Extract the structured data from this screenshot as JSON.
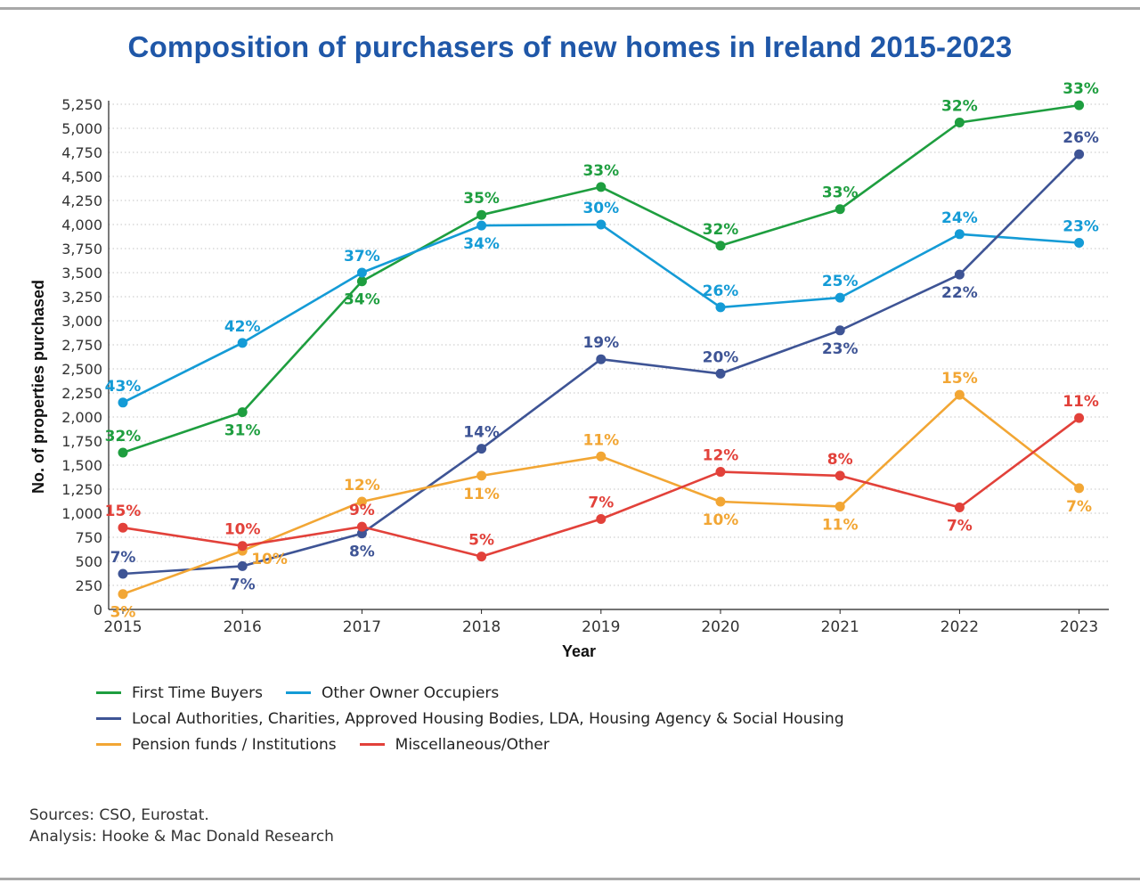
{
  "chart_data": {
    "type": "line",
    "title": "Composition of purchasers of new homes in Ireland 2015-2023",
    "xlabel": "Year",
    "ylabel": "No. of properties purchased",
    "ylim": [
      0,
      5250
    ],
    "yticks": [
      0,
      250,
      500,
      750,
      1000,
      1250,
      1500,
      1750,
      2000,
      2250,
      2500,
      2750,
      3000,
      3250,
      3500,
      3750,
      4000,
      4250,
      4500,
      4750,
      5000,
      5250
    ],
    "ytick_labels": [
      "0",
      "250",
      "500",
      "750",
      "1,000",
      "1,250",
      "1,500",
      "1,750",
      "2,000",
      "2,250",
      "2,500",
      "2,750",
      "3,000",
      "3,250",
      "3,500",
      "3,750",
      "4,000",
      "4,250",
      "4,500",
      "4,750",
      "5,000",
      "5,250"
    ],
    "categories": [
      "2015",
      "2016",
      "2017",
      "2018",
      "2019",
      "2020",
      "2021",
      "2022",
      "2023"
    ],
    "grid": "horizontal dotted",
    "legend_position": "bottom",
    "series": [
      {
        "name": "First Time Buyers",
        "color": "#1e9e3f",
        "values": [
          1630,
          2050,
          3410,
          4100,
          4390,
          3780,
          4160,
          5060,
          5240
        ],
        "labels": [
          "32%",
          "31%",
          "34%",
          "35%",
          "33%",
          "32%",
          "33%",
          "32%",
          "33%"
        ],
        "label_pos": [
          "above",
          "below",
          "below",
          "above",
          "above",
          "above",
          "above",
          "above",
          "above"
        ]
      },
      {
        "name": "Other Owner Occupiers",
        "color": "#149bd6",
        "values": [
          2150,
          2770,
          3500,
          3990,
          4000,
          3140,
          3240,
          3900,
          3810
        ],
        "labels": [
          "43%",
          "42%",
          "37%",
          "34%",
          "30%",
          "26%",
          "25%",
          "24%",
          "23%"
        ],
        "label_pos": [
          "above",
          "above",
          "above",
          "below",
          "above",
          "above",
          "above",
          "above",
          "above"
        ]
      },
      {
        "name": "Local Authorities, Charities, Approved Housing Bodies, LDA, Housing Agency & Social Housing",
        "color": "#3e5495",
        "values": [
          370,
          450,
          790,
          1670,
          2600,
          2450,
          2900,
          3480,
          4730
        ],
        "labels": [
          "7%",
          "7%",
          "8%",
          "14%",
          "19%",
          "20%",
          "23%",
          "22%",
          "26%"
        ],
        "label_pos": [
          "above",
          "below",
          "below",
          "above",
          "above",
          "above",
          "below",
          "below",
          "above"
        ]
      },
      {
        "name": "Pension funds / Institutions",
        "color": "#f2a634",
        "values": [
          160,
          610,
          1120,
          1390,
          1590,
          1120,
          1070,
          2230,
          1260
        ],
        "labels": [
          "3%",
          "10%",
          "12%",
          "11%",
          "11%",
          "10%",
          "11%",
          "15%",
          "7%"
        ],
        "label_pos": [
          "below",
          "right",
          "above",
          "below",
          "above",
          "below",
          "below",
          "above",
          "below"
        ]
      },
      {
        "name": "Miscellaneous/Other",
        "color": "#e2413a",
        "values": [
          850,
          660,
          860,
          550,
          940,
          1430,
          1390,
          1060,
          1990
        ],
        "labels": [
          "15%",
          "10%",
          "9%",
          "5%",
          "7%",
          "12%",
          "8%",
          "7%",
          "11%"
        ],
        "label_pos": [
          "above",
          "above",
          "above",
          "above",
          "above",
          "above",
          "above",
          "below",
          "above"
        ]
      }
    ]
  },
  "legend_rows": [
    [
      {
        "label": "First Time Buyers",
        "color": "#1e9e3f"
      },
      {
        "label": "Other Owner Occupiers",
        "color": "#149bd6"
      }
    ],
    [
      {
        "label": "Local Authorities, Charities, Approved Housing Bodies, LDA, Housing Agency & Social Housing",
        "color": "#3e5495"
      }
    ],
    [
      {
        "label": "Pension funds / Institutions",
        "color": "#f2a634"
      },
      {
        "label": "Miscellaneous/Other",
        "color": "#e2413a"
      }
    ]
  ],
  "sources": {
    "line1": "Sources: CSO, Eurostat.",
    "line2": "Analysis: Hooke & Mac Donald Research"
  }
}
